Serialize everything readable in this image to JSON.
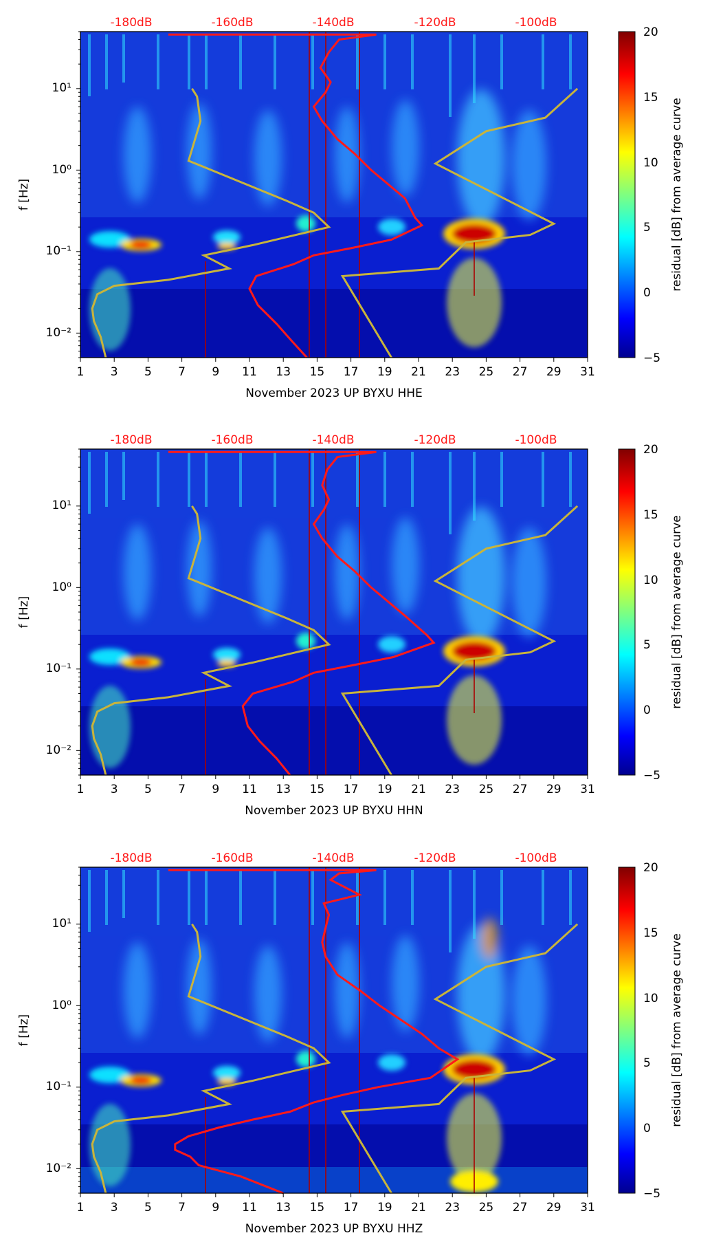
{
  "chart_data": [
    {
      "type": "heatmap",
      "subtype": "spectrogram",
      "channel": "HHE",
      "xlabel": "November 2023 UP BYXU  HHE",
      "ylabel": "f [Hz]",
      "x_ticks": [
        "1",
        "3",
        "5",
        "7",
        "9",
        "11",
        "13",
        "15",
        "17",
        "19",
        "21",
        "23",
        "25",
        "27",
        "29",
        "31"
      ],
      "xlim": [
        1,
        31
      ],
      "y_ticks": [
        "10⁻²",
        "10⁻¹",
        "10⁰",
        "10¹"
      ],
      "ylim_hz": [
        0.005,
        50
      ],
      "top_axis_labels": [
        "-180dB",
        "-160dB",
        "-140dB",
        "-120dB",
        "-100dB"
      ],
      "colorbar": {
        "label": "residual [dB] from average curve",
        "ticks": [
          "−5",
          "0",
          "5",
          "10",
          "15",
          "20"
        ],
        "range": [
          -5,
          20
        ]
      },
      "average_psd_curve": {
        "color": "#ff1a1a",
        "points": [
          [
            14.4,
            0.005
          ],
          [
            13.5,
            0.008
          ],
          [
            12.6,
            0.013
          ],
          [
            11.5,
            0.022
          ],
          [
            11.0,
            0.035
          ],
          [
            11.4,
            0.05
          ],
          [
            13.6,
            0.07
          ],
          [
            14.8,
            0.09
          ],
          [
            17.0,
            0.11
          ],
          [
            19.4,
            0.14
          ],
          [
            21.2,
            0.21
          ],
          [
            20.8,
            0.26
          ],
          [
            20.2,
            0.45
          ],
          [
            18.2,
            1.0
          ],
          [
            17.2,
            1.6
          ],
          [
            16.2,
            2.4
          ],
          [
            15.3,
            4.0
          ],
          [
            14.8,
            6.0
          ],
          [
            15.5,
            9.0
          ],
          [
            15.8,
            12.0
          ],
          [
            15.2,
            18.0
          ],
          [
            15.7,
            28.0
          ],
          [
            16.3,
            40.0
          ],
          [
            18.5,
            46.0
          ],
          [
            6.2,
            46.0
          ]
        ]
      },
      "reference_model_curve": {
        "color": "#c8b43c",
        "points": [
          [
            2.5,
            0.005
          ],
          [
            2.2,
            0.009
          ],
          [
            1.8,
            0.014
          ],
          [
            1.7,
            0.02
          ],
          [
            2.0,
            0.03
          ],
          [
            3.0,
            0.038
          ],
          [
            6.2,
            0.045
          ],
          [
            9.8,
            0.062
          ],
          [
            8.3,
            0.09
          ],
          [
            11.2,
            0.12
          ],
          [
            15.7,
            0.2
          ],
          [
            14.8,
            0.3
          ],
          [
            13.2,
            0.42
          ],
          [
            7.4,
            1.3
          ],
          [
            8.1,
            4.0
          ],
          [
            7.9,
            8.0
          ],
          [
            7.6,
            10.0
          ],
          [
            null,
            null
          ],
          [
            19.4,
            0.005
          ],
          [
            16.5,
            0.05
          ],
          [
            22.2,
            0.062
          ],
          [
            23.8,
            0.13
          ],
          [
            27.6,
            0.16
          ],
          [
            29.0,
            0.22
          ],
          [
            22.0,
            1.2
          ],
          [
            25.0,
            3.0
          ],
          [
            28.5,
            4.4
          ],
          [
            30.4,
            10.0
          ]
        ]
      }
    },
    {
      "type": "heatmap",
      "subtype": "spectrogram",
      "channel": "HHN",
      "xlabel": "November 2023 UP BYXU  HHN",
      "ylabel": "f [Hz]",
      "x_ticks": [
        "1",
        "3",
        "5",
        "7",
        "9",
        "11",
        "13",
        "15",
        "17",
        "19",
        "21",
        "23",
        "25",
        "27",
        "29",
        "31"
      ],
      "xlim": [
        1,
        31
      ],
      "y_ticks": [
        "10⁻²",
        "10⁻¹",
        "10⁰",
        "10¹"
      ],
      "ylim_hz": [
        0.005,
        50
      ],
      "top_axis_labels": [
        "-180dB",
        "-160dB",
        "-140dB",
        "-120dB",
        "-100dB"
      ],
      "colorbar": {
        "label": "residual [dB] from average curve",
        "ticks": [
          "−5",
          "0",
          "5",
          "10",
          "15",
          "20"
        ],
        "range": [
          -5,
          20
        ]
      },
      "average_psd_curve": {
        "color": "#ff1a1a",
        "points": [
          [
            13.4,
            0.005
          ],
          [
            12.6,
            0.008
          ],
          [
            11.6,
            0.013
          ],
          [
            10.9,
            0.02
          ],
          [
            10.6,
            0.035
          ],
          [
            11.2,
            0.05
          ],
          [
            13.6,
            0.07
          ],
          [
            14.8,
            0.09
          ],
          [
            17.0,
            0.11
          ],
          [
            19.5,
            0.14
          ],
          [
            21.9,
            0.21
          ],
          [
            21.5,
            0.26
          ],
          [
            20.2,
            0.45
          ],
          [
            18.2,
            1.0
          ],
          [
            17.2,
            1.6
          ],
          [
            16.2,
            2.4
          ],
          [
            15.3,
            4.0
          ],
          [
            14.8,
            6.0
          ],
          [
            15.4,
            9.0
          ],
          [
            15.7,
            12.0
          ],
          [
            15.3,
            18.0
          ],
          [
            15.6,
            28.0
          ],
          [
            16.2,
            40.0
          ],
          [
            18.5,
            46.0
          ],
          [
            6.2,
            46.0
          ]
        ]
      },
      "reference_model_curve": {
        "color": "#c8b43c",
        "points": [
          [
            2.5,
            0.005
          ],
          [
            2.2,
            0.009
          ],
          [
            1.8,
            0.014
          ],
          [
            1.7,
            0.02
          ],
          [
            2.0,
            0.03
          ],
          [
            3.0,
            0.038
          ],
          [
            6.2,
            0.045
          ],
          [
            9.8,
            0.062
          ],
          [
            8.3,
            0.09
          ],
          [
            11.2,
            0.12
          ],
          [
            15.7,
            0.2
          ],
          [
            14.8,
            0.3
          ],
          [
            13.2,
            0.42
          ],
          [
            7.4,
            1.3
          ],
          [
            8.1,
            4.0
          ],
          [
            7.9,
            8.0
          ],
          [
            7.6,
            10.0
          ],
          [
            null,
            null
          ],
          [
            19.4,
            0.005
          ],
          [
            16.5,
            0.05
          ],
          [
            22.2,
            0.062
          ],
          [
            23.8,
            0.13
          ],
          [
            27.6,
            0.16
          ],
          [
            29.0,
            0.22
          ],
          [
            22.0,
            1.2
          ],
          [
            25.0,
            3.0
          ],
          [
            28.5,
            4.4
          ],
          [
            30.4,
            10.0
          ]
        ]
      }
    },
    {
      "type": "heatmap",
      "subtype": "spectrogram",
      "channel": "HHZ",
      "xlabel": "November 2023 UP BYXU  HHZ",
      "ylabel": "f [Hz]",
      "x_ticks": [
        "1",
        "3",
        "5",
        "7",
        "9",
        "11",
        "13",
        "15",
        "17",
        "19",
        "21",
        "23",
        "25",
        "27",
        "29",
        "31"
      ],
      "xlim": [
        1,
        31
      ],
      "y_ticks": [
        "10⁻²",
        "10⁻¹",
        "10⁰",
        "10¹"
      ],
      "ylim_hz": [
        0.005,
        50
      ],
      "top_axis_labels": [
        "-180dB",
        "-160dB",
        "-140dB",
        "-120dB",
        "-100dB"
      ],
      "colorbar": {
        "label": "residual [dB] from average curve",
        "ticks": [
          "−5",
          "0",
          "5",
          "10",
          "15",
          "20"
        ],
        "range": [
          -5,
          20
        ]
      },
      "average_psd_curve": {
        "color": "#ff1a1a",
        "points": [
          [
            13.0,
            0.005
          ],
          [
            10.5,
            0.008
          ],
          [
            8.0,
            0.011
          ],
          [
            7.5,
            0.014
          ],
          [
            6.6,
            0.017
          ],
          [
            6.6,
            0.02
          ],
          [
            7.4,
            0.025
          ],
          [
            9.2,
            0.032
          ],
          [
            11.2,
            0.04
          ],
          [
            13.4,
            0.05
          ],
          [
            14.8,
            0.065
          ],
          [
            16.5,
            0.08
          ],
          [
            18.6,
            0.1
          ],
          [
            21.7,
            0.13
          ],
          [
            23.3,
            0.22
          ],
          [
            22.2,
            0.3
          ],
          [
            21.2,
            0.45
          ],
          [
            18.7,
            1.0
          ],
          [
            17.6,
            1.5
          ],
          [
            16.2,
            2.4
          ],
          [
            15.5,
            4.0
          ],
          [
            15.3,
            6.0
          ],
          [
            15.5,
            9.0
          ],
          [
            15.7,
            13.0
          ],
          [
            15.4,
            18.0
          ],
          [
            17.5,
            23.0
          ],
          [
            15.8,
            35.0
          ],
          [
            16.3,
            42.0
          ],
          [
            18.5,
            46.0
          ],
          [
            6.2,
            46.0
          ]
        ]
      },
      "reference_model_curve": {
        "color": "#c8b43c",
        "points": [
          [
            2.5,
            0.005
          ],
          [
            2.2,
            0.009
          ],
          [
            1.8,
            0.014
          ],
          [
            1.7,
            0.02
          ],
          [
            2.0,
            0.03
          ],
          [
            3.0,
            0.038
          ],
          [
            6.2,
            0.045
          ],
          [
            9.8,
            0.062
          ],
          [
            8.3,
            0.09
          ],
          [
            11.2,
            0.12
          ],
          [
            15.7,
            0.2
          ],
          [
            14.8,
            0.3
          ],
          [
            13.2,
            0.42
          ],
          [
            7.4,
            1.3
          ],
          [
            8.1,
            4.0
          ],
          [
            7.9,
            8.0
          ],
          [
            7.6,
            10.0
          ],
          [
            null,
            null
          ],
          [
            19.4,
            0.005
          ],
          [
            16.5,
            0.05
          ],
          [
            22.2,
            0.062
          ],
          [
            23.8,
            0.13
          ],
          [
            27.6,
            0.16
          ],
          [
            29.0,
            0.22
          ],
          [
            22.0,
            1.2
          ],
          [
            25.0,
            3.0
          ],
          [
            28.5,
            4.4
          ],
          [
            30.4,
            10.0
          ]
        ]
      }
    }
  ]
}
